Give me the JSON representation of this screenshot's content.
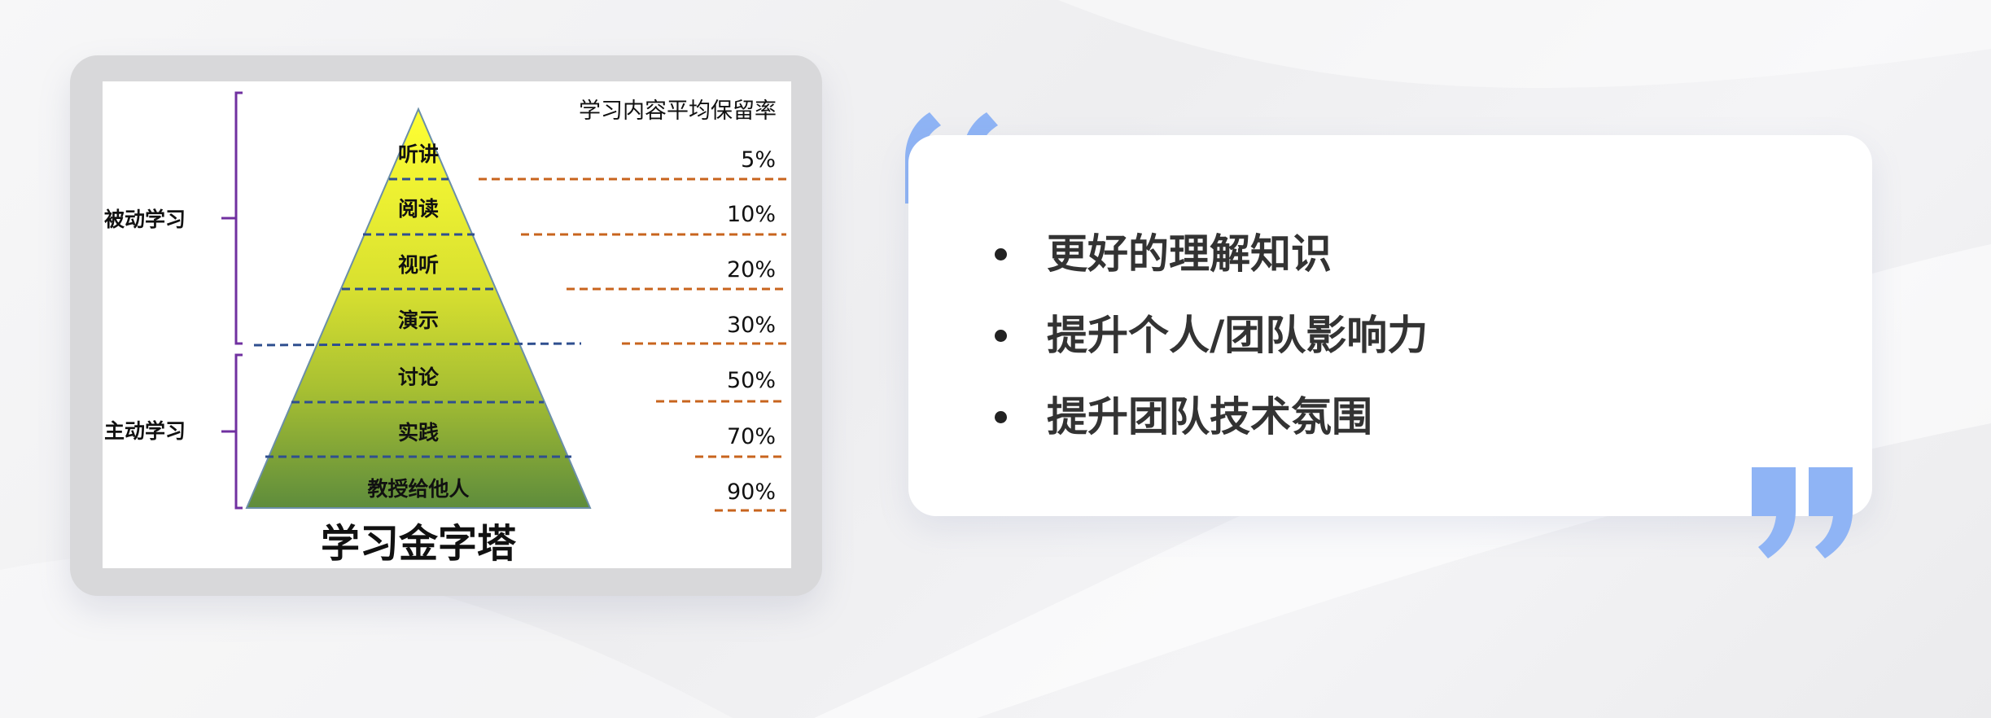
{
  "diagram": {
    "title": "学习金字塔",
    "retention_header": "学习内容平均保留率",
    "groups": [
      {
        "label": "被动学习"
      },
      {
        "label": "主动学习"
      }
    ],
    "levels": [
      {
        "label": "听讲",
        "retention": "5%"
      },
      {
        "label": "阅读",
        "retention": "10%"
      },
      {
        "label": "视听",
        "retention": "20%"
      },
      {
        "label": "演示",
        "retention": "30%"
      },
      {
        "label": "讨论",
        "retention": "50%"
      },
      {
        "label": "实践",
        "retention": "70%"
      },
      {
        "label": "教授给他人",
        "retention": "90%"
      }
    ],
    "colors": {
      "pyramid_top": "#ffff33",
      "pyramid_bottom": "#5e8c3c",
      "level_divider": "#2f4f8f",
      "retention_leader": "#c8641e",
      "bracket": "#7030a0"
    }
  },
  "benefits": {
    "items": [
      "更好的理解知识",
      "提升个人/团队影响力",
      "提升团队技术氛围"
    ],
    "quote_color": "#8fb4f5"
  }
}
